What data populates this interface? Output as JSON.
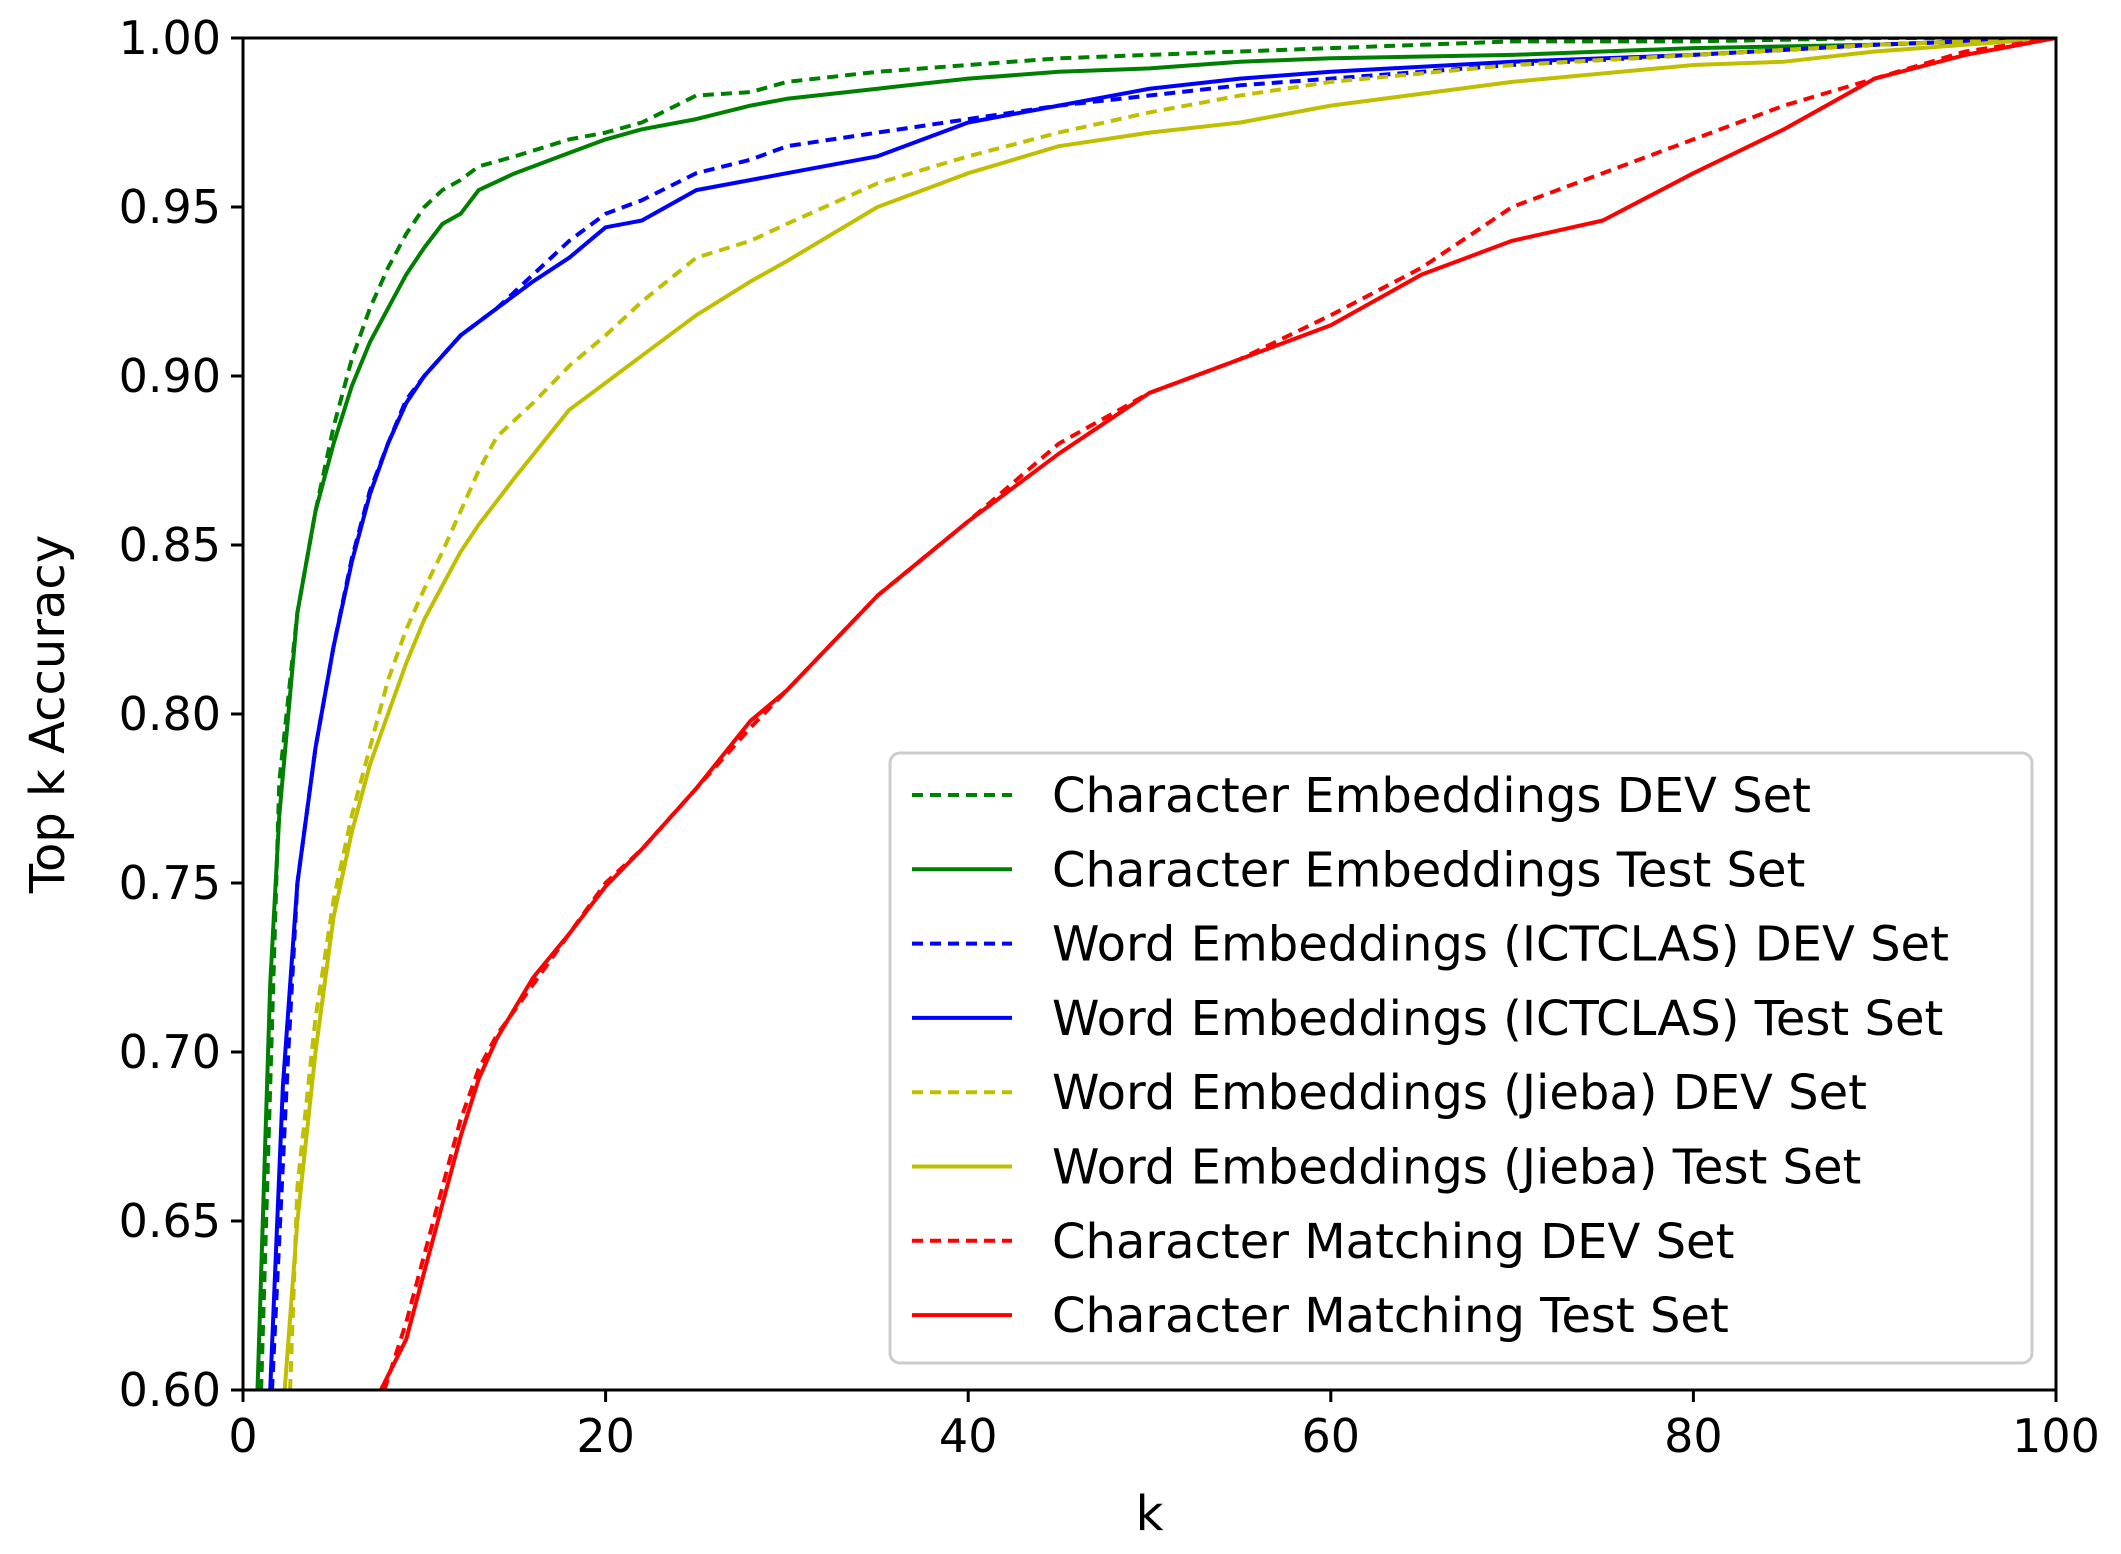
{
  "chart_data": {
    "type": "line",
    "title": "",
    "xlabel": "k",
    "ylabel": "Top k Accuracy",
    "xlim": [
      0,
      100
    ],
    "ylim": [
      0.6,
      1.0
    ],
    "xticks": [
      "0",
      "20",
      "40",
      "60",
      "80",
      "100"
    ],
    "yticks": [
      "0.60",
      "0.65",
      "0.70",
      "0.75",
      "0.80",
      "0.85",
      "0.90",
      "0.95",
      "1.00"
    ],
    "grid": false,
    "legend_position": "lower-right",
    "series": [
      {
        "name": "Character Embeddings DEV Set",
        "color": "#008000",
        "dash": "dashed",
        "x": [
          1,
          2,
          3,
          4,
          5,
          6,
          7,
          8,
          9,
          10,
          11,
          12,
          13,
          15,
          18,
          20,
          22,
          25,
          28,
          30,
          35,
          40,
          45,
          50,
          55,
          60,
          65,
          70,
          80,
          90,
          100
        ],
        "y": [
          0.6,
          0.78,
          0.83,
          0.86,
          0.885,
          0.905,
          0.92,
          0.932,
          0.942,
          0.95,
          0.955,
          0.958,
          0.962,
          0.965,
          0.97,
          0.972,
          0.975,
          0.983,
          0.984,
          0.987,
          0.99,
          0.992,
          0.994,
          0.995,
          0.996,
          0.997,
          0.998,
          0.999,
          0.999,
          1.0,
          1.0
        ]
      },
      {
        "name": "Character Embeddings Test Set",
        "color": "#008000",
        "dash": "solid",
        "x": [
          0.8,
          1.5,
          2,
          3,
          4,
          5,
          6,
          7,
          8,
          9,
          10,
          11,
          12,
          13,
          15,
          18,
          20,
          22,
          25,
          28,
          30,
          35,
          40,
          45,
          50,
          55,
          60,
          70,
          80,
          90,
          100
        ],
        "y": [
          0.6,
          0.72,
          0.77,
          0.83,
          0.86,
          0.88,
          0.897,
          0.91,
          0.92,
          0.93,
          0.938,
          0.945,
          0.948,
          0.955,
          0.96,
          0.966,
          0.97,
          0.973,
          0.976,
          0.98,
          0.982,
          0.985,
          0.988,
          0.99,
          0.991,
          0.993,
          0.994,
          0.995,
          0.997,
          0.998,
          1.0
        ]
      },
      {
        "name": "Word Embeddings (ICTCLAS) DEV Set",
        "color": "#0000ff",
        "dash": "dashed",
        "x": [
          1.6,
          2.5,
          3,
          4,
          5,
          6,
          7,
          8,
          9,
          10,
          11,
          12,
          14,
          16,
          18,
          20,
          22,
          25,
          28,
          30,
          35,
          40,
          45,
          50,
          55,
          60,
          70,
          80,
          90,
          100
        ],
        "y": [
          0.6,
          0.7,
          0.75,
          0.79,
          0.82,
          0.846,
          0.866,
          0.88,
          0.893,
          0.9,
          0.906,
          0.912,
          0.92,
          0.93,
          0.94,
          0.948,
          0.952,
          0.96,
          0.964,
          0.968,
          0.972,
          0.976,
          0.98,
          0.983,
          0.986,
          0.988,
          0.992,
          0.995,
          0.998,
          1.0
        ]
      },
      {
        "name": "Word Embeddings (ICTCLAS) Test Set",
        "color": "#0000ff",
        "dash": "solid",
        "x": [
          1.5,
          2.2,
          3,
          4,
          5,
          6,
          7,
          8,
          9,
          10,
          11,
          12,
          14,
          16,
          18,
          20,
          22,
          25,
          28,
          30,
          35,
          40,
          45,
          50,
          55,
          60,
          70,
          80,
          90,
          100
        ],
        "y": [
          0.6,
          0.69,
          0.75,
          0.79,
          0.82,
          0.845,
          0.865,
          0.88,
          0.892,
          0.9,
          0.906,
          0.912,
          0.92,
          0.928,
          0.935,
          0.944,
          0.946,
          0.955,
          0.958,
          0.96,
          0.965,
          0.975,
          0.98,
          0.985,
          0.988,
          0.99,
          0.993,
          0.995,
          0.998,
          1.0
        ]
      },
      {
        "name": "Word Embeddings (Jieba) DEV Set",
        "color": "#bfbf00",
        "dash": "dashed",
        "x": [
          2.6,
          3,
          4,
          5,
          6,
          7,
          8,
          9,
          10,
          11,
          12,
          13,
          14,
          16,
          18,
          20,
          22,
          25,
          28,
          30,
          35,
          40,
          45,
          50,
          55,
          60,
          70,
          80,
          90,
          100
        ],
        "y": [
          0.6,
          0.66,
          0.71,
          0.745,
          0.77,
          0.79,
          0.81,
          0.825,
          0.837,
          0.848,
          0.86,
          0.872,
          0.882,
          0.892,
          0.903,
          0.912,
          0.922,
          0.935,
          0.94,
          0.945,
          0.957,
          0.965,
          0.972,
          0.978,
          0.983,
          0.987,
          0.992,
          0.995,
          0.998,
          1.0
        ]
      },
      {
        "name": "Word Embeddings (Jieba) Test Set",
        "color": "#bfbf00",
        "dash": "solid",
        "x": [
          2.3,
          3,
          4,
          5,
          6,
          7,
          8,
          9,
          10,
          11,
          12,
          13,
          15,
          18,
          20,
          22,
          25,
          28,
          30,
          35,
          40,
          45,
          50,
          55,
          60,
          70,
          80,
          85,
          90,
          95,
          100
        ],
        "y": [
          0.6,
          0.65,
          0.7,
          0.74,
          0.765,
          0.785,
          0.8,
          0.815,
          0.828,
          0.838,
          0.848,
          0.856,
          0.87,
          0.89,
          0.898,
          0.906,
          0.918,
          0.928,
          0.934,
          0.95,
          0.96,
          0.968,
          0.972,
          0.975,
          0.98,
          0.987,
          0.992,
          0.993,
          0.996,
          0.998,
          1.0
        ]
      },
      {
        "name": "Character Matching DEV Set",
        "color": "#ff0000",
        "dash": "dashed",
        "x": [
          7.8,
          9,
          10,
          11,
          12,
          13,
          14,
          16,
          18,
          20,
          22,
          25,
          28,
          30,
          35,
          40,
          45,
          50,
          55,
          60,
          65,
          70,
          75,
          80,
          85,
          90,
          95,
          100
        ],
        "y": [
          0.6,
          0.62,
          0.64,
          0.66,
          0.68,
          0.695,
          0.705,
          0.72,
          0.735,
          0.75,
          0.76,
          0.778,
          0.796,
          0.807,
          0.835,
          0.857,
          0.88,
          0.895,
          0.905,
          0.918,
          0.932,
          0.95,
          0.96,
          0.97,
          0.98,
          0.988,
          0.996,
          1.0
        ]
      },
      {
        "name": "Character Matching Test Set",
        "color": "#ff0000",
        "dash": "solid",
        "x": [
          7.6,
          9,
          10,
          11,
          12,
          13,
          14,
          16,
          18,
          20,
          22,
          25,
          28,
          30,
          35,
          40,
          45,
          50,
          55,
          60,
          65,
          70,
          75,
          80,
          85,
          90,
          95,
          100
        ],
        "y": [
          0.6,
          0.615,
          0.635,
          0.655,
          0.675,
          0.692,
          0.704,
          0.722,
          0.735,
          0.749,
          0.76,
          0.778,
          0.798,
          0.807,
          0.835,
          0.857,
          0.877,
          0.895,
          0.905,
          0.915,
          0.93,
          0.94,
          0.946,
          0.96,
          0.973,
          0.988,
          0.995,
          1.0
        ]
      }
    ]
  }
}
